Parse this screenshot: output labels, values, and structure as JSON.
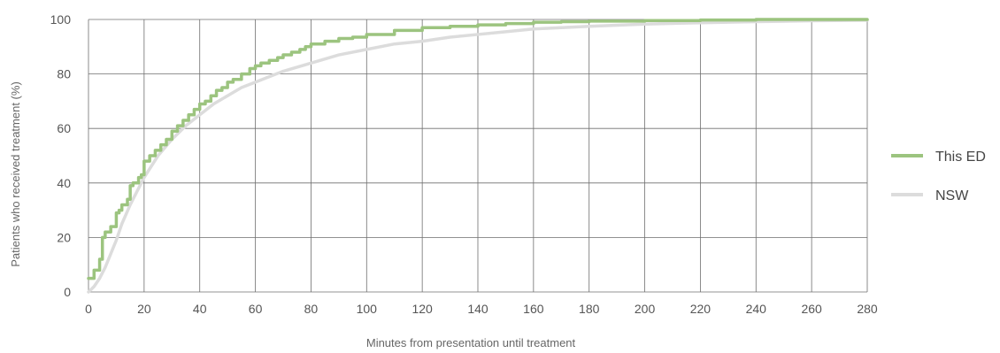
{
  "chart_data": {
    "type": "line",
    "title": "",
    "xlabel": "Minutes from presentation until treatment",
    "ylabel": "Patients who received treatment (%)",
    "xlim": [
      0,
      280
    ],
    "ylim": [
      0,
      100
    ],
    "xticks": [
      0,
      20,
      40,
      60,
      80,
      100,
      120,
      140,
      160,
      180,
      200,
      220,
      240,
      260,
      280
    ],
    "yticks": [
      0,
      20,
      40,
      60,
      80,
      100
    ],
    "grid": true,
    "legend_position": "right",
    "series": [
      {
        "name": "This ED",
        "color": "#9cc47f",
        "step": true,
        "x": [
          0,
          2,
          4,
          5,
          6,
          8,
          10,
          11,
          12,
          14,
          15,
          16,
          18,
          19,
          20,
          22,
          24,
          26,
          28,
          30,
          32,
          34,
          36,
          38,
          40,
          42,
          44,
          46,
          48,
          50,
          52,
          55,
          58,
          60,
          62,
          65,
          68,
          70,
          73,
          76,
          78,
          80,
          85,
          90,
          95,
          100,
          110,
          120,
          130,
          140,
          150,
          160,
          170,
          180,
          200,
          220,
          240,
          260,
          280
        ],
        "y": [
          5,
          8,
          12,
          20,
          22,
          24,
          29,
          30,
          32,
          34,
          39,
          40,
          42,
          43,
          48,
          50,
          52,
          54,
          56,
          59,
          61,
          63,
          65,
          67,
          69,
          70,
          72,
          74,
          75,
          77,
          78,
          80,
          82,
          83,
          84,
          85,
          86,
          87,
          88,
          89,
          90,
          91,
          92,
          93,
          93.5,
          94.5,
          96,
          97,
          97.5,
          98,
          98.5,
          99,
          99.2,
          99.4,
          99.6,
          99.8,
          100,
          100,
          100
        ]
      },
      {
        "name": "NSW",
        "color": "#dcdcdc",
        "step": false,
        "x": [
          0,
          2,
          4,
          6,
          8,
          10,
          12,
          15,
          18,
          20,
          25,
          30,
          35,
          40,
          45,
          50,
          55,
          60,
          70,
          80,
          90,
          100,
          110,
          120,
          130,
          140,
          150,
          160,
          170,
          180,
          200,
          220,
          240,
          260,
          280
        ],
        "y": [
          0,
          2,
          5,
          9,
          14,
          19,
          25,
          32,
          38,
          42,
          50,
          56,
          61,
          65,
          69,
          72,
          75,
          77,
          81,
          84,
          87,
          89,
          91,
          92,
          93.5,
          94.5,
          95.5,
          96.5,
          97,
          97.5,
          98.3,
          98.8,
          99.2,
          99.5,
          99.7
        ]
      }
    ]
  }
}
